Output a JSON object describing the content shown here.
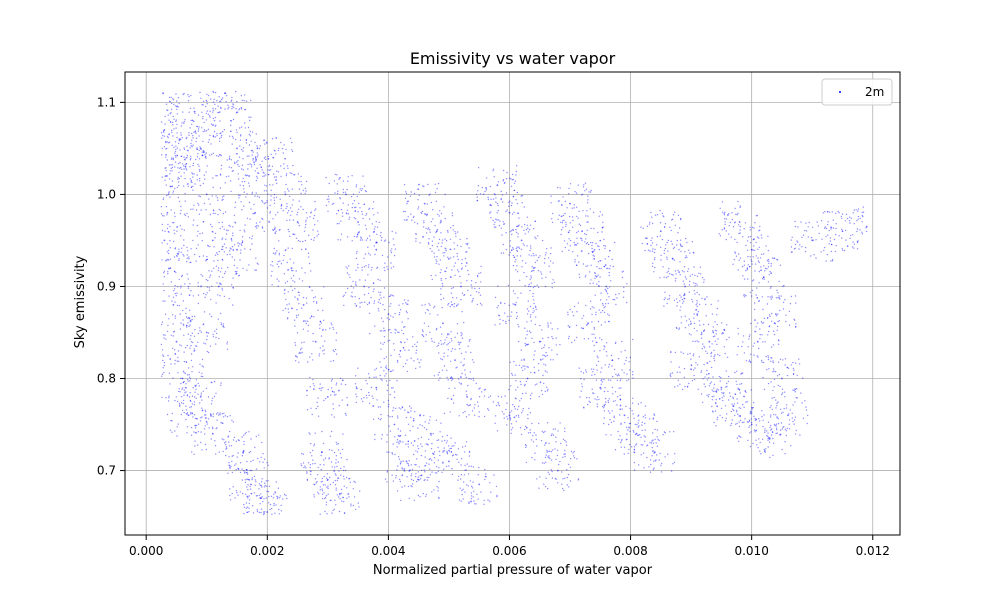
{
  "chart_data": {
    "type": "scatter",
    "title": "Emissivity vs water vapor",
    "xlabel": "Normalized partial pressure of water vapor",
    "ylabel": "Sky emissivity",
    "xlim": [
      -0.00035,
      0.01245
    ],
    "ylim": [
      0.63,
      1.133
    ],
    "x_ticks": [
      {
        "value": 0.0,
        "label": "0.000"
      },
      {
        "value": 0.002,
        "label": "0.002"
      },
      {
        "value": 0.004,
        "label": "0.004"
      },
      {
        "value": 0.006,
        "label": "0.006"
      },
      {
        "value": 0.008,
        "label": "0.008"
      },
      {
        "value": 0.01,
        "label": "0.010"
      },
      {
        "value": 0.012,
        "label": "0.012"
      }
    ],
    "y_ticks": [
      {
        "value": 0.7,
        "label": "0.7"
      },
      {
        "value": 0.8,
        "label": "0.8"
      },
      {
        "value": 0.9,
        "label": "0.9"
      },
      {
        "value": 1.0,
        "label": "1.0"
      },
      {
        "value": 1.1,
        "label": "1.1"
      }
    ],
    "grid": true,
    "legend": {
      "position": "top-right"
    },
    "series": [
      {
        "name": "2m",
        "color": "#0000ff",
        "marker": "dot",
        "points": [
          [
            0.00028,
            1.11
          ],
          [
            0.0003,
            1.07
          ],
          [
            0.00033,
            1.02
          ],
          [
            0.00035,
            0.98
          ],
          [
            0.0003,
            0.95
          ],
          [
            0.0004,
            0.92
          ],
          [
            0.00045,
            0.88
          ],
          [
            0.0005,
            0.84
          ],
          [
            0.0006,
            0.8
          ],
          [
            0.0007,
            0.76
          ],
          [
            0.00055,
            1.06
          ],
          [
            0.00065,
            1.03
          ],
          [
            0.0008,
            1.09
          ],
          [
            0.0009,
            1.05
          ],
          [
            0.001,
            1.0
          ],
          [
            0.0011,
            0.95
          ],
          [
            0.0012,
            0.9
          ],
          [
            0.001,
            0.85
          ],
          [
            0.0009,
            0.78
          ],
          [
            0.0011,
            0.74
          ],
          [
            0.0013,
            1.11
          ],
          [
            0.0014,
            1.08
          ],
          [
            0.0015,
            1.05
          ],
          [
            0.0017,
            1.02
          ],
          [
            0.0018,
            0.98
          ],
          [
            0.0015,
            0.94
          ],
          [
            0.0016,
            0.72
          ],
          [
            0.0017,
            0.69
          ],
          [
            0.0019,
            0.67
          ],
          [
            0.002,
            0.655
          ],
          [
            0.0021,
            1.04
          ],
          [
            0.0023,
            1.0
          ],
          [
            0.0025,
            0.97
          ],
          [
            0.0024,
            0.92
          ],
          [
            0.0026,
            0.88
          ],
          [
            0.0028,
            0.84
          ],
          [
            0.003,
            0.78
          ],
          [
            0.0029,
            0.72
          ],
          [
            0.003,
            0.69
          ],
          [
            0.0032,
            0.675
          ],
          [
            0.0033,
            1.0
          ],
          [
            0.0035,
            0.97
          ],
          [
            0.0038,
            0.94
          ],
          [
            0.0036,
            0.9
          ],
          [
            0.004,
            0.87
          ],
          [
            0.0042,
            0.83
          ],
          [
            0.0038,
            0.79
          ],
          [
            0.0041,
            0.75
          ],
          [
            0.0043,
            0.71
          ],
          [
            0.0045,
            0.69
          ],
          [
            0.0046,
            0.99
          ],
          [
            0.0048,
            0.96
          ],
          [
            0.005,
            0.93
          ],
          [
            0.0052,
            0.9
          ],
          [
            0.0049,
            0.86
          ],
          [
            0.0051,
            0.82
          ],
          [
            0.0053,
            0.78
          ],
          [
            0.0047,
            0.74
          ],
          [
            0.005,
            0.71
          ],
          [
            0.0055,
            0.685
          ],
          [
            0.0058,
            1.01
          ],
          [
            0.006,
            0.98
          ],
          [
            0.0062,
            0.95
          ],
          [
            0.0064,
            0.92
          ],
          [
            0.0061,
            0.88
          ],
          [
            0.0065,
            0.84
          ],
          [
            0.0063,
            0.8
          ],
          [
            0.006,
            0.76
          ],
          [
            0.0066,
            0.73
          ],
          [
            0.0068,
            0.7
          ],
          [
            0.007,
            0.99
          ],
          [
            0.0072,
            0.96
          ],
          [
            0.0074,
            0.93
          ],
          [
            0.0076,
            0.9
          ],
          [
            0.0073,
            0.86
          ],
          [
            0.0077,
            0.82
          ],
          [
            0.0075,
            0.79
          ],
          [
            0.0079,
            0.76
          ],
          [
            0.0081,
            0.74
          ],
          [
            0.0084,
            0.72
          ],
          [
            0.0085,
            0.96
          ],
          [
            0.0087,
            0.93
          ],
          [
            0.0089,
            0.9
          ],
          [
            0.0091,
            0.87
          ],
          [
            0.0093,
            0.84
          ],
          [
            0.009,
            0.81
          ],
          [
            0.0095,
            0.79
          ],
          [
            0.0097,
            0.77
          ],
          [
            0.01,
            0.75
          ],
          [
            0.0103,
            0.735
          ],
          [
            0.0098,
            0.97
          ],
          [
            0.01,
            0.94
          ],
          [
            0.0102,
            0.91
          ],
          [
            0.0104,
            0.87
          ],
          [
            0.0101,
            0.84
          ],
          [
            0.0105,
            0.8
          ],
          [
            0.0106,
            0.76
          ],
          [
            0.011,
            0.95
          ],
          [
            0.0115,
            0.96
          ],
          [
            0.0119,
            0.965
          ]
        ]
      }
    ]
  }
}
